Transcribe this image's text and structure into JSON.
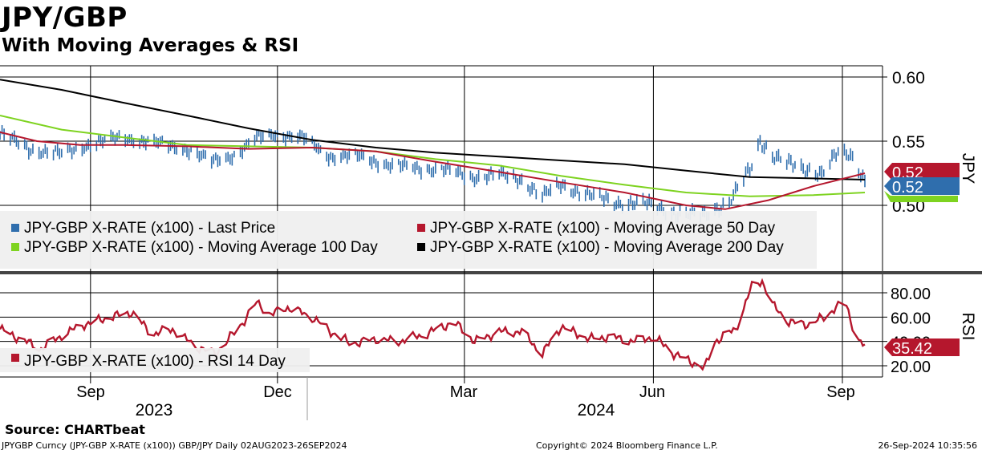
{
  "header": {
    "title": "JPY/GBP",
    "subtitle": "With Moving Averages & RSI"
  },
  "footer": {
    "source": "Source: CHARTbeat",
    "ticker": "JPYGBP Curncy (JPY-GBP X-RATE (x100)) GBP/JPY  Daily 02AUG2023-26SEP2024",
    "copyright": "Copyright© 2024 Bloomberg Finance L.P.",
    "timestamp": "26-Sep-2024 10:35:56"
  },
  "colors": {
    "last_price": "#2f6ead",
    "ma50": "#b5172d",
    "ma100": "#7ed320",
    "ma200": "#000000",
    "rsi": "#b5172d"
  },
  "chart_data": [
    {
      "type": "line",
      "panel": "price",
      "axis_label": "JPY",
      "ylim": [
        0.49,
        0.61
      ],
      "yticks": [
        "0.60",
        "0.55",
        "0.50"
      ],
      "xticks": [
        "Sep",
        "Dec",
        "Mar",
        "Jun",
        "Sep"
      ],
      "year_labels": [
        "2023",
        "2024"
      ],
      "x_range": [
        "2023-08-02",
        "2024-09-26"
      ],
      "grid": true,
      "legend_position": "bottom-left",
      "series": [
        {
          "name": "JPY-GBP X-RATE (x100) - Last Price",
          "color_key": "last_price",
          "style": "bars",
          "points": [
            [
              "2023-08-02",
              0.556
            ],
            [
              "2023-08-16",
              0.544
            ],
            [
              "2023-09-01",
              0.54
            ],
            [
              "2023-09-15",
              0.548
            ],
            [
              "2023-10-01",
              0.553
            ],
            [
              "2023-10-15",
              0.549
            ],
            [
              "2023-11-01",
              0.544
            ],
            [
              "2023-11-13",
              0.534
            ],
            [
              "2023-11-25",
              0.54
            ],
            [
              "2023-12-05",
              0.552
            ],
            [
              "2023-12-14",
              0.556
            ],
            [
              "2023-12-28",
              0.552
            ],
            [
              "2024-01-10",
              0.538
            ],
            [
              "2024-01-25",
              0.538
            ],
            [
              "2024-02-08",
              0.531
            ],
            [
              "2024-02-22",
              0.529
            ],
            [
              "2024-03-05",
              0.528
            ],
            [
              "2024-03-18",
              0.522
            ],
            [
              "2024-04-01",
              0.524
            ],
            [
              "2024-04-12",
              0.52
            ],
            [
              "2024-04-22",
              0.507
            ],
            [
              "2024-05-01",
              0.516
            ],
            [
              "2024-05-15",
              0.508
            ],
            [
              "2024-05-28",
              0.502
            ],
            [
              "2024-06-10",
              0.502
            ],
            [
              "2024-06-25",
              0.494
            ],
            [
              "2024-07-10",
              0.492
            ],
            [
              "2024-07-22",
              0.503
            ],
            [
              "2024-08-02",
              0.53
            ],
            [
              "2024-08-06",
              0.55
            ],
            [
              "2024-08-12",
              0.54
            ],
            [
              "2024-08-25",
              0.528
            ],
            [
              "2024-09-05",
              0.526
            ],
            [
              "2024-09-12",
              0.54
            ],
            [
              "2024-09-19",
              0.538
            ],
            [
              "2024-09-26",
              0.52
            ]
          ]
        },
        {
          "name": "JPY-GBP X-RATE (x100) - Moving Average 50 Day",
          "color_key": "ma50",
          "style": "line",
          "points": [
            [
              "2023-08-02",
              0.557
            ],
            [
              "2023-08-20",
              0.55
            ],
            [
              "2023-09-10",
              0.547
            ],
            [
              "2023-10-01",
              0.547
            ],
            [
              "2023-11-01",
              0.546
            ],
            [
              "2023-12-01",
              0.544
            ],
            [
              "2024-01-01",
              0.545
            ],
            [
              "2024-02-01",
              0.542
            ],
            [
              "2024-03-01",
              0.534
            ],
            [
              "2024-04-01",
              0.526
            ],
            [
              "2024-05-01",
              0.518
            ],
            [
              "2024-06-01",
              0.51
            ],
            [
              "2024-07-01",
              0.5
            ],
            [
              "2024-07-20",
              0.497
            ],
            [
              "2024-08-10",
              0.504
            ],
            [
              "2024-09-01",
              0.515
            ],
            [
              "2024-09-26",
              0.525
            ]
          ]
        },
        {
          "name": "JPY-GBP X-RATE (x100) - Moving Average 100 Day",
          "color_key": "ma100",
          "style": "line",
          "points": [
            [
              "2023-08-02",
              0.57
            ],
            [
              "2023-09-01",
              0.559
            ],
            [
              "2023-10-01",
              0.553
            ],
            [
              "2023-11-01",
              0.547
            ],
            [
              "2023-12-01",
              0.546
            ],
            [
              "2024-01-01",
              0.545
            ],
            [
              "2024-02-01",
              0.542
            ],
            [
              "2024-03-01",
              0.536
            ],
            [
              "2024-04-01",
              0.531
            ],
            [
              "2024-05-01",
              0.523
            ],
            [
              "2024-06-01",
              0.516
            ],
            [
              "2024-07-01",
              0.51
            ],
            [
              "2024-08-01",
              0.507
            ],
            [
              "2024-09-01",
              0.508
            ],
            [
              "2024-09-26",
              0.51
            ]
          ]
        },
        {
          "name": "JPY-GBP X-RATE (x100) - Moving Average 200 Day",
          "color_key": "ma200",
          "style": "line",
          "points": [
            [
              "2023-08-02",
              0.598
            ],
            [
              "2023-09-01",
              0.59
            ],
            [
              "2023-10-01",
              0.58
            ],
            [
              "2023-11-01",
              0.57
            ],
            [
              "2023-12-01",
              0.56
            ],
            [
              "2024-01-01",
              0.551
            ],
            [
              "2024-02-01",
              0.545
            ],
            [
              "2024-03-01",
              0.541
            ],
            [
              "2024-04-01",
              0.538
            ],
            [
              "2024-05-01",
              0.535
            ],
            [
              "2024-06-01",
              0.532
            ],
            [
              "2024-07-01",
              0.527
            ],
            [
              "2024-08-01",
              0.522
            ],
            [
              "2024-09-01",
              0.521
            ],
            [
              "2024-09-26",
              0.52
            ]
          ]
        }
      ],
      "price_tags": [
        {
          "value": "0.52",
          "color_key": "ma50"
        },
        {
          "value": "0.52",
          "color_key": "last_price"
        }
      ]
    },
    {
      "type": "line",
      "panel": "rsi",
      "axis_label": "RSI",
      "ylim": [
        10,
        100
      ],
      "yticks": [
        "80.00",
        "60.00",
        "40.00",
        "20.00"
      ],
      "grid": true,
      "legend_position": "bottom-left",
      "series": [
        {
          "name": "JPY-GBP X-RATE (x100) - RSI 14 Day",
          "color_key": "rsi",
          "points": [
            [
              "2023-08-02",
              50
            ],
            [
              "2023-08-12",
              42
            ],
            [
              "2023-08-22",
              34
            ],
            [
              "2023-09-01",
              45
            ],
            [
              "2023-09-12",
              54
            ],
            [
              "2023-09-25",
              60
            ],
            [
              "2023-10-05",
              64
            ],
            [
              "2023-10-15",
              46
            ],
            [
              "2023-10-25",
              50
            ],
            [
              "2023-11-05",
              36
            ],
            [
              "2023-11-15",
              30
            ],
            [
              "2023-11-28",
              55
            ],
            [
              "2023-12-05",
              72
            ],
            [
              "2023-12-12",
              62
            ],
            [
              "2023-12-20",
              68
            ],
            [
              "2024-01-01",
              60
            ],
            [
              "2024-01-10",
              48
            ],
            [
              "2024-01-20",
              38
            ],
            [
              "2024-02-01",
              42
            ],
            [
              "2024-02-12",
              40
            ],
            [
              "2024-02-25",
              46
            ],
            [
              "2024-03-10",
              56
            ],
            [
              "2024-03-20",
              40
            ],
            [
              "2024-04-01",
              48
            ],
            [
              "2024-04-12",
              48
            ],
            [
              "2024-04-22",
              30
            ],
            [
              "2024-05-01",
              52
            ],
            [
              "2024-05-15",
              42
            ],
            [
              "2024-05-25",
              44
            ],
            [
              "2024-06-05",
              40
            ],
            [
              "2024-06-15",
              44
            ],
            [
              "2024-06-25",
              30
            ],
            [
              "2024-07-05",
              22
            ],
            [
              "2024-07-10",
              18
            ],
            [
              "2024-07-15",
              40
            ],
            [
              "2024-07-25",
              50
            ],
            [
              "2024-08-02",
              85
            ],
            [
              "2024-08-07",
              90
            ],
            [
              "2024-08-12",
              70
            ],
            [
              "2024-08-20",
              56
            ],
            [
              "2024-08-30",
              54
            ],
            [
              "2024-09-06",
              60
            ],
            [
              "2024-09-12",
              68
            ],
            [
              "2024-09-17",
              70
            ],
            [
              "2024-09-22",
              42
            ],
            [
              "2024-09-26",
              35.42
            ]
          ]
        }
      ],
      "value_tag": "35.42"
    }
  ]
}
